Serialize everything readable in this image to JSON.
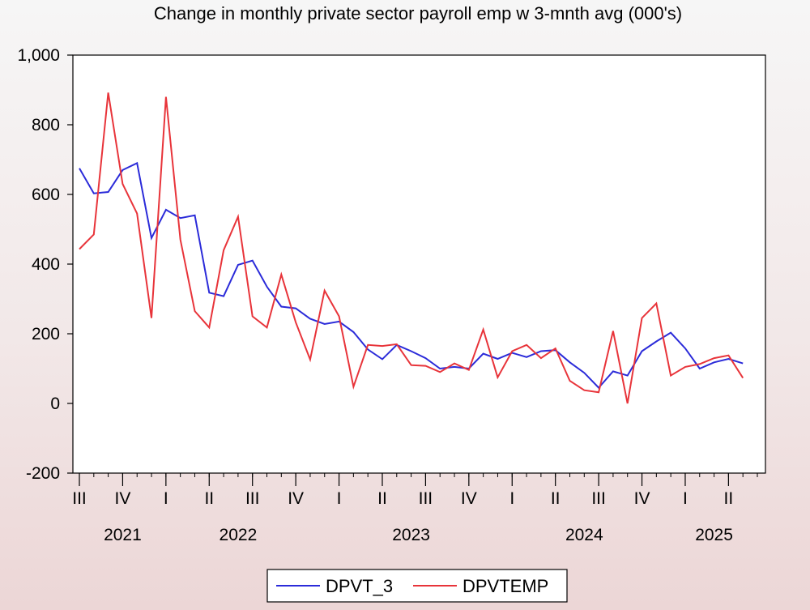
{
  "chart_data": {
    "type": "line",
    "title": "Change in monthly private sector payroll emp w 3-mnth avg (000's)",
    "xlabel": "",
    "ylabel": "",
    "ylim": [
      -200,
      1000
    ],
    "yticks": [
      -200,
      0,
      200,
      400,
      600,
      800,
      1000
    ],
    "ytick_labels": [
      "-200",
      "0",
      "200",
      "400",
      "600",
      "800",
      "1,000"
    ],
    "grid": false,
    "legend_position": "bottom-center",
    "x_start": "2021-07",
    "x_end": "2025-06",
    "quarter_ticks": [
      {
        "label": "III",
        "month": "2021-07"
      },
      {
        "label": "IV",
        "month": "2021-10"
      },
      {
        "label": "I",
        "month": "2022-01"
      },
      {
        "label": "II",
        "month": "2022-04"
      },
      {
        "label": "III",
        "month": "2022-07"
      },
      {
        "label": "IV",
        "month": "2022-10"
      },
      {
        "label": "I",
        "month": "2023-01"
      },
      {
        "label": "II",
        "month": "2023-04"
      },
      {
        "label": "III",
        "month": "2023-07"
      },
      {
        "label": "IV",
        "month": "2023-10"
      },
      {
        "label": "I",
        "month": "2024-01"
      },
      {
        "label": "II",
        "month": "2024-04"
      },
      {
        "label": "III",
        "month": "2024-07"
      },
      {
        "label": "IV",
        "month": "2024-10"
      },
      {
        "label": "I",
        "month": "2025-01"
      },
      {
        "label": "II",
        "month": "2025-04"
      }
    ],
    "year_labels": [
      {
        "label": "2021",
        "month": "2021-10"
      },
      {
        "label": "2022",
        "month": "2022-06"
      },
      {
        "label": "2023",
        "month": "2023-06"
      },
      {
        "label": "2024",
        "month": "2024-06"
      },
      {
        "label": "2025",
        "month": "2025-03"
      }
    ],
    "series": [
      {
        "name": "DPVT_3",
        "color": "#2b2bd9",
        "values": [
          675,
          603,
          607,
          670,
          690,
          475,
          556,
          532,
          540,
          318,
          308,
          398,
          410,
          335,
          278,
          273,
          243,
          228,
          235,
          205,
          155,
          127,
          168,
          150,
          130,
          100,
          105,
          100,
          143,
          128,
          145,
          133,
          150,
          153,
          118,
          88,
          45,
          92,
          80,
          150,
          178,
          203,
          158,
          100,
          118,
          128,
          115
        ]
      },
      {
        "name": "DPVTEMP",
        "color": "#e8343a",
        "values": [
          443,
          485,
          892,
          630,
          545,
          245,
          880,
          470,
          265,
          218,
          440,
          536,
          250,
          218,
          370,
          233,
          126,
          324,
          250,
          48,
          168,
          165,
          170,
          110,
          108,
          90,
          115,
          96,
          212,
          75,
          150,
          168,
          130,
          158,
          65,
          38,
          32,
          208,
          0,
          245,
          287,
          80,
          105,
          113,
          130,
          138,
          73
        ]
      }
    ]
  }
}
